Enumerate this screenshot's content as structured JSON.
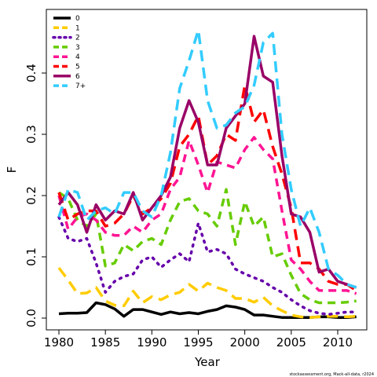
{
  "chart_data": {
    "type": "line",
    "title": "",
    "xlabel": "Year",
    "ylabel": "F",
    "xlim": [
      1980,
      2012
    ],
    "ylim": [
      0,
      0.45
    ],
    "grid": false,
    "legend_position": "top-left",
    "x_ticks": [
      1980,
      1985,
      1990,
      1995,
      2000,
      2005,
      2010
    ],
    "y_ticks": [
      0.0,
      0.1,
      0.2,
      0.3,
      0.4
    ],
    "y_tick_labels": [
      "0.0",
      "0.1",
      "0.2",
      "0.3",
      "0.4"
    ],
    "credit": "stockassessment.org, Mack-all-data, r2024",
    "x": [
      1980,
      1981,
      1982,
      1983,
      1984,
      1985,
      1986,
      1987,
      1988,
      1989,
      1990,
      1991,
      1992,
      1993,
      1994,
      1995,
      1996,
      1997,
      1998,
      1999,
      2000,
      2001,
      2002,
      2003,
      2004,
      2005,
      2006,
      2007,
      2008,
      2009,
      2010,
      2011,
      2012
    ],
    "series": [
      {
        "name": "0",
        "color": "#000000",
        "dash": "solid",
        "values": [
          0.007,
          0.008,
          0.008,
          0.009,
          0.025,
          0.022,
          0.015,
          0.003,
          0.014,
          0.014,
          0.01,
          0.006,
          0.01,
          0.007,
          0.009,
          0.007,
          0.011,
          0.014,
          0.02,
          0.018,
          0.014,
          0.005,
          0.005,
          0.003,
          0.001,
          0.001,
          0.001,
          0.001,
          0.002,
          0.002,
          0.001,
          0.001,
          0.002
        ]
      },
      {
        "name": "1",
        "color": "#ffcc00",
        "dash": "long",
        "values": [
          0.082,
          0.062,
          0.04,
          0.041,
          0.05,
          0.028,
          0.021,
          0.02,
          0.044,
          0.025,
          0.035,
          0.03,
          0.038,
          0.042,
          0.055,
          0.044,
          0.057,
          0.05,
          0.045,
          0.032,
          0.032,
          0.026,
          0.034,
          0.02,
          0.012,
          0.005,
          0.002,
          0.001,
          0.002,
          0.003,
          0.003,
          0.002,
          0.003
        ]
      },
      {
        "name": "2",
        "color": "#6600aa",
        "dash": "dot",
        "values": [
          0.165,
          0.13,
          0.125,
          0.13,
          0.09,
          0.042,
          0.06,
          0.068,
          0.072,
          0.095,
          0.1,
          0.083,
          0.095,
          0.105,
          0.092,
          0.155,
          0.108,
          0.112,
          0.105,
          0.08,
          0.072,
          0.066,
          0.06,
          0.05,
          0.042,
          0.03,
          0.02,
          0.012,
          0.008,
          0.006,
          0.008,
          0.01,
          0.01
        ]
      },
      {
        "name": "3",
        "color": "#66cc00",
        "dash": "dash",
        "values": [
          0.205,
          0.195,
          0.16,
          0.15,
          0.17,
          0.085,
          0.09,
          0.12,
          0.11,
          0.125,
          0.13,
          0.12,
          0.16,
          0.19,
          0.195,
          0.175,
          0.17,
          0.15,
          0.21,
          0.12,
          0.19,
          0.15,
          0.165,
          0.1,
          0.105,
          0.07,
          0.04,
          0.03,
          0.025,
          0.025,
          0.025,
          0.026,
          0.028
        ]
      },
      {
        "name": "4",
        "color": "#ff1493",
        "dash": "dash",
        "values": [
          0.2,
          0.145,
          0.165,
          0.17,
          0.16,
          0.14,
          0.135,
          0.135,
          0.15,
          0.14,
          0.16,
          0.17,
          0.21,
          0.23,
          0.29,
          0.25,
          0.205,
          0.255,
          0.25,
          0.245,
          0.275,
          0.295,
          0.275,
          0.26,
          0.175,
          0.095,
          0.08,
          0.06,
          0.045,
          0.045,
          0.045,
          0.045,
          0.04
        ]
      },
      {
        "name": "5",
        "color": "#ff0000",
        "dash": "long",
        "values": [
          0.205,
          0.16,
          0.17,
          0.175,
          0.175,
          0.15,
          0.155,
          0.17,
          0.2,
          0.17,
          0.18,
          0.195,
          0.22,
          0.28,
          0.3,
          0.33,
          0.25,
          0.265,
          0.3,
          0.29,
          0.38,
          0.32,
          0.34,
          0.28,
          0.235,
          0.18,
          0.09,
          0.09,
          0.08,
          0.06,
          0.055,
          0.055,
          0.045
        ]
      },
      {
        "name": "6",
        "color": "#990066",
        "dash": "solid",
        "values": [
          0.185,
          0.205,
          0.185,
          0.14,
          0.185,
          0.16,
          0.175,
          0.17,
          0.205,
          0.16,
          0.18,
          0.2,
          0.23,
          0.31,
          0.355,
          0.32,
          0.25,
          0.25,
          0.31,
          0.33,
          0.35,
          0.46,
          0.395,
          0.385,
          0.265,
          0.17,
          0.165,
          0.14,
          0.075,
          0.08,
          0.06,
          0.055,
          0.05
        ]
      },
      {
        "name": "7+",
        "color": "#33ccff",
        "dash": "long",
        "values": [
          0.165,
          0.21,
          0.205,
          0.16,
          0.175,
          0.18,
          0.17,
          0.205,
          0.205,
          0.175,
          0.165,
          0.2,
          0.27,
          0.375,
          0.42,
          0.47,
          0.355,
          0.31,
          0.315,
          0.335,
          0.345,
          0.38,
          0.45,
          0.465,
          0.3,
          0.21,
          0.15,
          0.18,
          0.14,
          0.08,
          0.07,
          0.055,
          0.05
        ]
      }
    ]
  }
}
